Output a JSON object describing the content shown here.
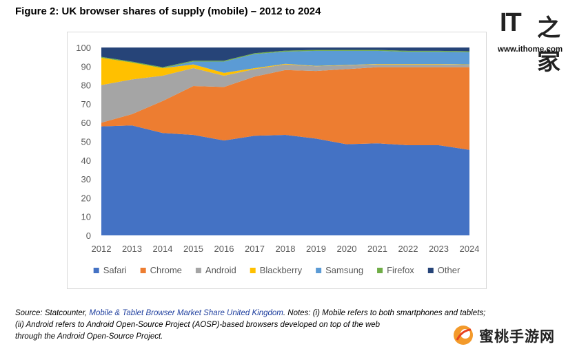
{
  "figure": {
    "title": "Figure 2: UK browser shares of supply (mobile) – 2012 to 2024"
  },
  "brand": {
    "logo_text": "IT",
    "logo_mark": "之家",
    "url": "www.ithome.com"
  },
  "watermark": {
    "text": "蜜桃手游网"
  },
  "source": {
    "prefix": "Source: Statcounter, ",
    "link": "Mobile & Tablet Browser Market Share United Kingdom",
    "line1_rest": ". Notes: (i) Mobile refers to both smartphones and tablets;",
    "line2": "(ii) Android refers to Android Open-Source Project (AOSP)-based browsers developed on top of the web",
    "line3": "through the Android Open-Source Project."
  },
  "chart_data": {
    "type": "area",
    "stacked": true,
    "x": [
      "2012",
      "2013",
      "2014",
      "2015",
      "2016",
      "2017",
      "2018",
      "2019",
      "2020",
      "2021",
      "2022",
      "2023",
      "2024"
    ],
    "ylim": [
      0,
      100
    ],
    "yticks": [
      "0",
      "10",
      "20",
      "30",
      "40",
      "50",
      "60",
      "70",
      "80",
      "90",
      "100"
    ],
    "legend_position": "bottom",
    "grid": false,
    "series": [
      {
        "name": "Safari",
        "color": "#4472C4",
        "values": [
          58,
          58.5,
          54.5,
          53.5,
          50.5,
          53,
          53.5,
          51.5,
          48.5,
          49,
          48,
          48,
          45.5
        ]
      },
      {
        "name": "Chrome",
        "color": "#ED7D31",
        "values": [
          2,
          6,
          17,
          26,
          28.5,
          31.5,
          34.5,
          36,
          40,
          40.5,
          41.5,
          41.5,
          44
        ]
      },
      {
        "name": "Android",
        "color": "#A5A5A5",
        "values": [
          20,
          18.5,
          13.5,
          9.5,
          6,
          4,
          3,
          2.5,
          2,
          1.5,
          1.5,
          1.5,
          1.3
        ]
      },
      {
        "name": "Blackberry",
        "color": "#FFC000",
        "values": [
          14.5,
          9,
          4,
          2,
          1.5,
          0.5,
          0.3,
          0.2,
          0.2,
          0.2,
          0.2,
          0.2,
          0.2
        ]
      },
      {
        "name": "Samsung",
        "color": "#5B9BD5",
        "values": [
          0,
          0,
          0,
          1.5,
          6,
          7.5,
          6.5,
          8,
          7.5,
          7,
          6.5,
          6.5,
          6.5
        ]
      },
      {
        "name": "Firefox",
        "color": "#70AD47",
        "values": [
          0.5,
          0.5,
          0.5,
          0.5,
          0.5,
          0.5,
          0.5,
          0.5,
          0.5,
          0.5,
          0.5,
          0.5,
          0.5
        ]
      },
      {
        "name": "Other",
        "color": "#264478",
        "values": [
          5,
          7.5,
          10.5,
          7,
          7,
          3,
          1.7,
          1.3,
          1.3,
          1.3,
          1.8,
          1.8,
          2
        ]
      }
    ]
  }
}
